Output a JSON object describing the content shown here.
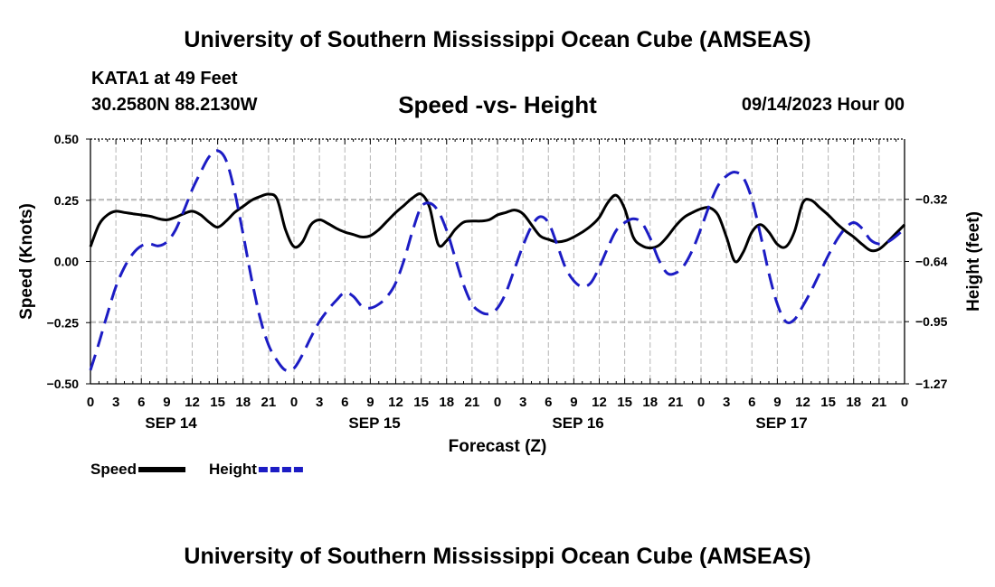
{
  "page": {
    "top_title": "University of Southern Mississippi Ocean Cube (AMSEAS)",
    "bottom_title": "University of Southern Mississippi Ocean Cube (AMSEAS)",
    "station": "KATA1 at 49 Feet",
    "coordinates": "30.2580N  88.2130W",
    "chart_title": "Speed -vs- Height",
    "run_time": "09/14/2023 Hour 00"
  },
  "chart_data": {
    "type": "line",
    "title": "Speed -vs- Height",
    "xlabel": "Forecast (Z)",
    "ylabel": "Speed (Knots)",
    "y2label": "Height (feet)",
    "xlim": [
      0,
      96
    ],
    "ylim": [
      -0.5,
      0.5
    ],
    "y2lim": [
      -1.27,
      -0.01
    ],
    "y_ticks": [
      "0.50",
      "0.25",
      "0.00",
      "−0.25",
      "−0.50"
    ],
    "y_tick_values": [
      0.5,
      0.25,
      0.0,
      -0.25,
      -0.5
    ],
    "y2_ticks": [
      "−0.32",
      "−0.64",
      "−0.95",
      "−1.27"
    ],
    "y2_tick_values": [
      -0.32,
      -0.64,
      -0.95,
      -1.27
    ],
    "x_tick_labels": [
      "0",
      "3",
      "6",
      "9",
      "12",
      "15",
      "18",
      "21",
      "0",
      "3",
      "6",
      "9",
      "12",
      "15",
      "18",
      "21",
      "0",
      "3",
      "6",
      "9",
      "12",
      "15",
      "18",
      "21",
      "0",
      "3",
      "6",
      "9",
      "12",
      "15",
      "18",
      "21",
      "0"
    ],
    "date_labels": [
      {
        "label": "SEP 14",
        "hour": 9.5
      },
      {
        "label": "SEP 15",
        "hour": 33.5
      },
      {
        "label": "SEP 16",
        "hour": 57.5
      },
      {
        "label": "SEP 17",
        "hour": 81.5
      }
    ],
    "grid": true,
    "series": [
      {
        "name": "Speed",
        "color": "#000000",
        "dashed": false,
        "axis": "left",
        "x": [
          0,
          1,
          2,
          3,
          4,
          5,
          6,
          7,
          8,
          9,
          10,
          11,
          12,
          13,
          14,
          15,
          16,
          17,
          18,
          19,
          20,
          21,
          22,
          23,
          24,
          25,
          26,
          27,
          28,
          29,
          30,
          31,
          32,
          33,
          34,
          35,
          36,
          37,
          38,
          39,
          40,
          41,
          42,
          43,
          44,
          45,
          46,
          47,
          48,
          49,
          50,
          51,
          52,
          53,
          54,
          55,
          56,
          57,
          58,
          59,
          60,
          61,
          62,
          63,
          64,
          65,
          66,
          67,
          68,
          69,
          70,
          71,
          72,
          73,
          74,
          75,
          76,
          77,
          78,
          79,
          80,
          81,
          82,
          83,
          84,
          85,
          86,
          87,
          88,
          89,
          90,
          91,
          92,
          93,
          94,
          95,
          96
        ],
        "values": [
          0.06,
          0.15,
          0.19,
          0.205,
          0.2,
          0.195,
          0.19,
          0.185,
          0.175,
          0.17,
          0.18,
          0.195,
          0.205,
          0.19,
          0.16,
          0.14,
          0.165,
          0.2,
          0.225,
          0.25,
          0.265,
          0.275,
          0.255,
          0.13,
          0.06,
          0.08,
          0.15,
          0.17,
          0.155,
          0.135,
          0.12,
          0.11,
          0.1,
          0.105,
          0.13,
          0.165,
          0.2,
          0.23,
          0.26,
          0.275,
          0.22,
          0.07,
          0.085,
          0.13,
          0.16,
          0.165,
          0.165,
          0.17,
          0.19,
          0.2,
          0.21,
          0.195,
          0.15,
          0.105,
          0.09,
          0.08,
          0.085,
          0.1,
          0.12,
          0.145,
          0.18,
          0.24,
          0.27,
          0.215,
          0.1,
          0.065,
          0.055,
          0.065,
          0.1,
          0.145,
          0.18,
          0.2,
          0.215,
          0.22,
          0.19,
          0.1,
          0.0,
          0.04,
          0.12,
          0.15,
          0.12,
          0.07,
          0.06,
          0.12,
          0.24,
          0.25,
          0.22,
          0.19,
          0.155,
          0.125,
          0.1,
          0.07,
          0.045,
          0.05,
          0.08,
          0.115,
          0.15
        ]
      },
      {
        "name": "Height",
        "color": "#1c1cc4",
        "dashed": true,
        "axis": "right",
        "x": [
          0,
          1,
          2,
          3,
          4,
          5,
          6,
          7,
          8,
          9,
          10,
          11,
          12,
          13,
          14,
          15,
          16,
          17,
          18,
          19,
          20,
          21,
          22,
          23,
          24,
          25,
          26,
          27,
          28,
          29,
          30,
          31,
          32,
          33,
          34,
          35,
          36,
          37,
          38,
          39,
          40,
          41,
          42,
          43,
          44,
          45,
          46,
          47,
          48,
          49,
          50,
          51,
          52,
          53,
          54,
          55,
          56,
          57,
          58,
          59,
          60,
          61,
          62,
          63,
          64,
          65,
          66,
          67,
          68,
          69,
          70,
          71,
          72,
          73,
          74,
          75,
          76,
          77,
          78,
          79,
          80,
          81,
          82,
          83,
          84,
          85,
          86,
          87,
          88,
          89,
          90,
          91,
          92,
          93,
          94,
          95,
          96
        ],
        "values": [
          -1.2,
          -1.06,
          -0.91,
          -0.77,
          -0.67,
          -0.6,
          -0.56,
          -0.55,
          -0.56,
          -0.54,
          -0.48,
          -0.38,
          -0.27,
          -0.18,
          -0.1,
          -0.07,
          -0.12,
          -0.28,
          -0.5,
          -0.73,
          -0.93,
          -1.07,
          -1.15,
          -1.2,
          -1.19,
          -1.12,
          -1.03,
          -0.95,
          -0.89,
          -0.84,
          -0.8,
          -0.82,
          -0.87,
          -0.88,
          -0.86,
          -0.82,
          -0.75,
          -0.63,
          -0.48,
          -0.36,
          -0.34,
          -0.38,
          -0.48,
          -0.62,
          -0.76,
          -0.86,
          -0.9,
          -0.91,
          -0.88,
          -0.8,
          -0.68,
          -0.56,
          -0.46,
          -0.41,
          -0.44,
          -0.55,
          -0.67,
          -0.74,
          -0.77,
          -0.75,
          -0.67,
          -0.57,
          -0.48,
          -0.44,
          -0.42,
          -0.44,
          -0.52,
          -0.63,
          -0.7,
          -0.7,
          -0.66,
          -0.58,
          -0.47,
          -0.35,
          -0.25,
          -0.2,
          -0.18,
          -0.21,
          -0.32,
          -0.5,
          -0.7,
          -0.86,
          -0.95,
          -0.94,
          -0.87,
          -0.79,
          -0.7,
          -0.61,
          -0.53,
          -0.47,
          -0.44,
          -0.47,
          -0.53,
          -0.55,
          -0.54,
          -0.51,
          -0.47
        ]
      }
    ],
    "legend": [
      {
        "label": "Speed",
        "color": "#000000",
        "dashed": false
      },
      {
        "label": "Height",
        "color": "#1c1cc4",
        "dashed": true
      }
    ]
  }
}
